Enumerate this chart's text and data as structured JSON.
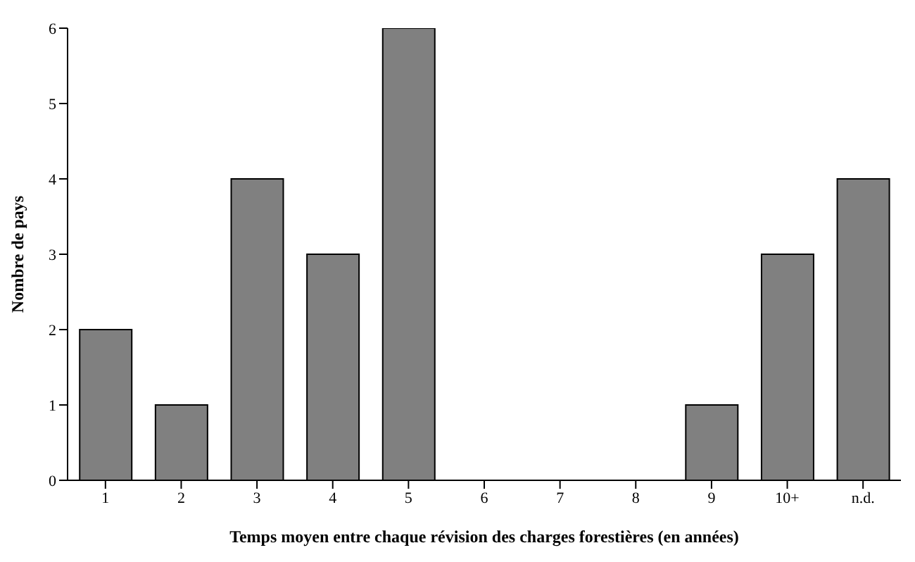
{
  "chart_data": {
    "type": "bar",
    "xlabel": "Temps moyen entre chaque révision des charges forestières (en années)",
    "ylabel": "Nombre de pays",
    "categories": [
      "1",
      "2",
      "3",
      "4",
      "5",
      "6",
      "7",
      "8",
      "9",
      "10+",
      "n.d."
    ],
    "values": [
      2,
      1,
      4,
      3,
      6,
      0,
      0,
      0,
      1,
      3,
      4
    ],
    "color": "#808080",
    "ylim": [
      0,
      6
    ],
    "yticks": [
      0,
      1,
      2,
      3,
      4,
      5,
      6
    ]
  }
}
